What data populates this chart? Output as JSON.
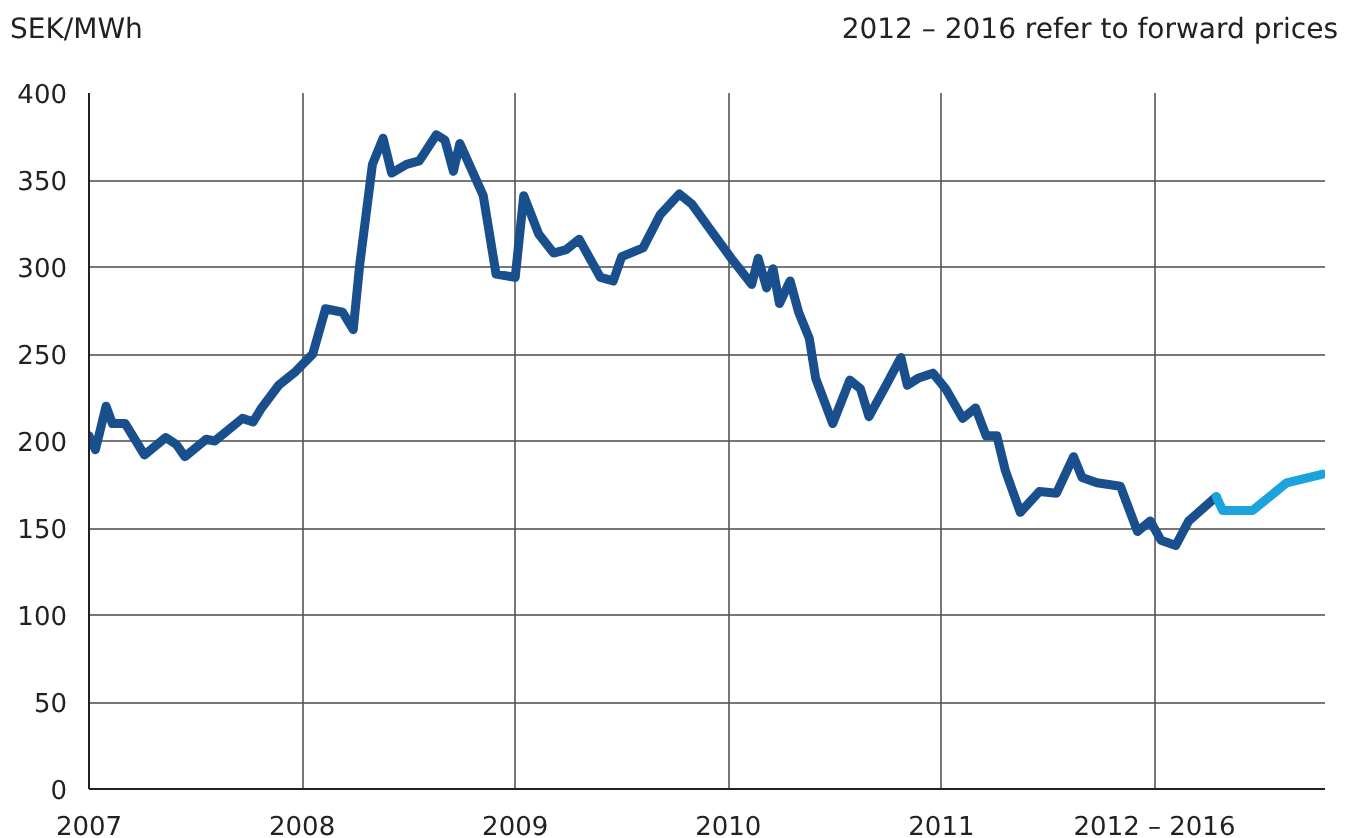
{
  "chart_data": {
    "type": "line",
    "ylabel": "SEK/MWh",
    "annotations": [
      "2012 – 2016 refer to forward prices"
    ],
    "xlim": [
      2007,
      2012.8
    ],
    "xticks": [
      2007,
      2008,
      2009,
      2010,
      2011,
      {
        "value": 2012,
        "label": "2012 – 2016"
      }
    ],
    "ylim": [
      0,
      400
    ],
    "yticks": [
      0,
      50,
      100,
      150,
      200,
      250,
      300,
      350,
      400
    ],
    "grid": true,
    "marker": "none",
    "line_style": "solid",
    "series": [
      {
        "color": "#1a4f8e",
        "x": [
          2007.0,
          2007.03,
          2007.08,
          2007.11,
          2007.17,
          2007.26,
          2007.36,
          2007.41,
          2007.45,
          2007.55,
          2007.59,
          2007.72,
          2007.77,
          2007.81,
          2007.89,
          2007.97,
          2008.05,
          2008.11,
          2008.19,
          2008.24,
          2008.27,
          2008.33,
          2008.38,
          2008.42,
          2008.49,
          2008.55,
          2008.63,
          2008.67,
          2008.71,
          2008.74,
          2008.85,
          2008.91,
          2009.0,
          2009.04,
          2009.11,
          2009.18,
          2009.24,
          2009.3,
          2009.4,
          2009.46,
          2009.5,
          2009.6,
          2009.68,
          2009.77,
          2009.83,
          2009.93,
          2010.02,
          2010.11,
          2010.14,
          2010.18,
          2010.21,
          2010.24,
          2010.29,
          2010.33,
          2010.38,
          2010.41,
          2010.49,
          2010.57,
          2010.62,
          2010.66,
          2010.74,
          2010.81,
          2010.84,
          2010.89,
          2010.96,
          2011.02,
          2011.1,
          2011.16,
          2011.21,
          2011.26,
          2011.3,
          2011.37,
          2011.46,
          2011.54,
          2011.62,
          2011.66,
          2011.73,
          2011.84,
          2011.92,
          2011.98,
          2012.03,
          2012.1,
          2012.16,
          2012.29
        ],
        "values": [
          203,
          195,
          220,
          210,
          210,
          192,
          202,
          198,
          191,
          201,
          200,
          213,
          211,
          219,
          232,
          240,
          250,
          276,
          274,
          264,
          301,
          359,
          374,
          354,
          359,
          361,
          376,
          373,
          355,
          371,
          341,
          296,
          294,
          341,
          319,
          308,
          310,
          316,
          294,
          292,
          306,
          311,
          330,
          342,
          336,
          319,
          304,
          290,
          305,
          288,
          299,
          279,
          292,
          274,
          259,
          236,
          210,
          235,
          230,
          214,
          232,
          248,
          232,
          236,
          239,
          230,
          213,
          219,
          203,
          203,
          183,
          159,
          171,
          170,
          191,
          179,
          176,
          174,
          148,
          154,
          143,
          140,
          154,
          168
        ]
      },
      {
        "color": "#1aa3dc",
        "x": [
          2012.29,
          2012.32,
          2012.46,
          2012.62,
          2012.79
        ],
        "values": [
          168,
          160,
          160,
          176,
          181
        ]
      }
    ]
  }
}
